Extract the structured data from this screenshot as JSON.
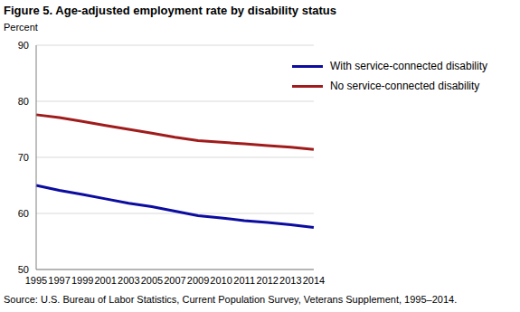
{
  "chart_data": {
    "type": "line",
    "title": "Figure 5. Age-adjusted employment rate by disability status",
    "y_label": "Percent",
    "source": "Source: U.S. Bureau of Labor Statistics, Current Population Survey, Veterans Supplement, 1995–2014.",
    "categories": [
      "1995",
      "1997",
      "1999",
      "2001",
      "2003",
      "2005",
      "2007",
      "2009",
      "2010",
      "2011",
      "2012",
      "2013",
      "2014"
    ],
    "series": [
      {
        "name": "With service-connected disability",
        "color": "#0c0ca0",
        "values": [
          65.0,
          64.1,
          63.4,
          62.6,
          61.8,
          61.2,
          60.4,
          59.6,
          59.2,
          58.7,
          58.4,
          58.0,
          57.5
        ]
      },
      {
        "name": "No service-connected disability",
        "color": "#a01c1c",
        "values": [
          77.6,
          77.1,
          76.4,
          75.7,
          75.0,
          74.3,
          73.6,
          73.0,
          72.7,
          72.4,
          72.1,
          71.8,
          71.4
        ]
      }
    ],
    "ylim": [
      50,
      90
    ],
    "yticks": [
      50,
      60,
      70,
      80,
      90
    ],
    "grid": true,
    "legend": "upper right"
  }
}
